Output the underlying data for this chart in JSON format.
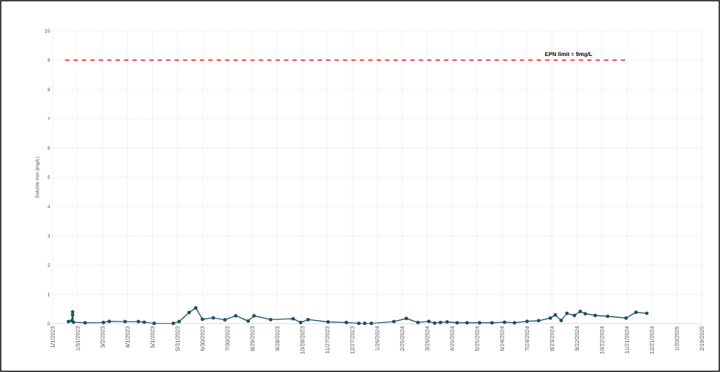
{
  "chart_data": {
    "type": "line",
    "ylabel": "Soluble Iron (mg/L)",
    "x": [
      "2023-01-20",
      "2023-01-24",
      "2023-01-25",
      "2023-01-25",
      "2023-01-26",
      "2023-02-09",
      "2023-03-03",
      "2023-03-10",
      "2023-03-29",
      "2023-04-14",
      "2023-04-21",
      "2023-05-03",
      "2023-05-26",
      "2023-06-02",
      "2023-06-14",
      "2023-06-22",
      "2023-06-30",
      "2023-07-13",
      "2023-07-27",
      "2023-08-09",
      "2023-08-24",
      "2023-08-31",
      "2023-09-20",
      "2023-10-17",
      "2023-10-26",
      "2023-11-04",
      "2023-11-28",
      "2023-12-20",
      "2024-01-04",
      "2024-01-11",
      "2024-01-19",
      "2024-02-15",
      "2024-03-01",
      "2024-03-15",
      "2024-03-28",
      "2024-04-04",
      "2024-04-11",
      "2024-04-19",
      "2024-05-01",
      "2024-05-13",
      "2024-05-28",
      "2024-06-12",
      "2024-06-27",
      "2024-07-09",
      "2024-07-24",
      "2024-08-07",
      "2024-08-21",
      "2024-08-27",
      "2024-09-03",
      "2024-09-10",
      "2024-09-19",
      "2024-09-26",
      "2024-10-02",
      "2024-10-14",
      "2024-10-29",
      "2024-11-20",
      "2024-12-02",
      "2024-12-15"
    ],
    "series": [
      {
        "color": "#1b4f66",
        "values": [
          0.07,
          0.1,
          0.4,
          0.3,
          0.05,
          0.03,
          0.04,
          0.08,
          0.07,
          0.07,
          0.05,
          0.01,
          0.01,
          0.07,
          0.38,
          0.54,
          0.15,
          0.2,
          0.13,
          0.27,
          0.09,
          0.27,
          0.14,
          0.17,
          0.04,
          0.14,
          0.06,
          0.04,
          0.01,
          0.01,
          0.01,
          0.07,
          0.18,
          0.04,
          0.08,
          0.02,
          0.04,
          0.06,
          0.03,
          0.03,
          0.03,
          0.03,
          0.05,
          0.03,
          0.08,
          0.1,
          0.19,
          0.3,
          0.11,
          0.35,
          0.28,
          0.42,
          0.34,
          0.28,
          0.25,
          0.19,
          0.39,
          0.35
        ]
      }
    ],
    "xlim": [
      "2023-01-01",
      "2025-02-19"
    ],
    "ylim": [
      0,
      10
    ],
    "yticks": [
      0,
      1,
      2,
      3,
      4,
      5,
      6,
      7,
      8,
      9,
      10
    ],
    "xticks": [
      {
        "value": "2023-01-01",
        "label": "1/1/2023"
      },
      {
        "value": "2023-01-31",
        "label": "1/31/2023"
      },
      {
        "value": "2023-03-02",
        "label": "3/2/2023"
      },
      {
        "value": "2023-04-01",
        "label": "4/1/2023"
      },
      {
        "value": "2023-05-01",
        "label": "5/1/2023"
      },
      {
        "value": "2023-05-31",
        "label": "5/31/2023"
      },
      {
        "value": "2023-06-30",
        "label": "6/30/2023"
      },
      {
        "value": "2023-07-30",
        "label": "7/30/2023"
      },
      {
        "value": "2023-08-29",
        "label": "8/29/2023"
      },
      {
        "value": "2023-09-28",
        "label": "9/28/2023"
      },
      {
        "value": "2023-10-28",
        "label": "10/28/2023"
      },
      {
        "value": "2023-11-27",
        "label": "11/27/2023"
      },
      {
        "value": "2023-12-27",
        "label": "12/27/2023"
      },
      {
        "value": "2024-01-26",
        "label": "1/26/2024"
      },
      {
        "value": "2024-02-25",
        "label": "2/25/2024"
      },
      {
        "value": "2024-03-26",
        "label": "3/26/2024"
      },
      {
        "value": "2024-04-25",
        "label": "4/25/2024"
      },
      {
        "value": "2024-05-25",
        "label": "5/25/2024"
      },
      {
        "value": "2024-06-24",
        "label": "6/24/2024"
      },
      {
        "value": "2024-07-24",
        "label": "7/24/2024"
      },
      {
        "value": "2024-08-23",
        "label": "8/23/2024"
      },
      {
        "value": "2024-09-22",
        "label": "9/22/2024"
      },
      {
        "value": "2024-10-22",
        "label": "10/22/2024"
      },
      {
        "value": "2024-11-21",
        "label": "11/21/2024"
      },
      {
        "value": "2024-12-21",
        "label": "12/21/2024"
      },
      {
        "value": "2025-01-20",
        "label": "1/20/2025"
      },
      {
        "value": "2025-02-19",
        "label": "2/19/2025"
      }
    ],
    "grid": true,
    "marker": "circle",
    "ref_lines": [
      {
        "axis": "y",
        "value": 9,
        "label": "EPN limit = 9mg/L",
        "color": "#ff0000",
        "line_style": "dashed"
      }
    ]
  }
}
